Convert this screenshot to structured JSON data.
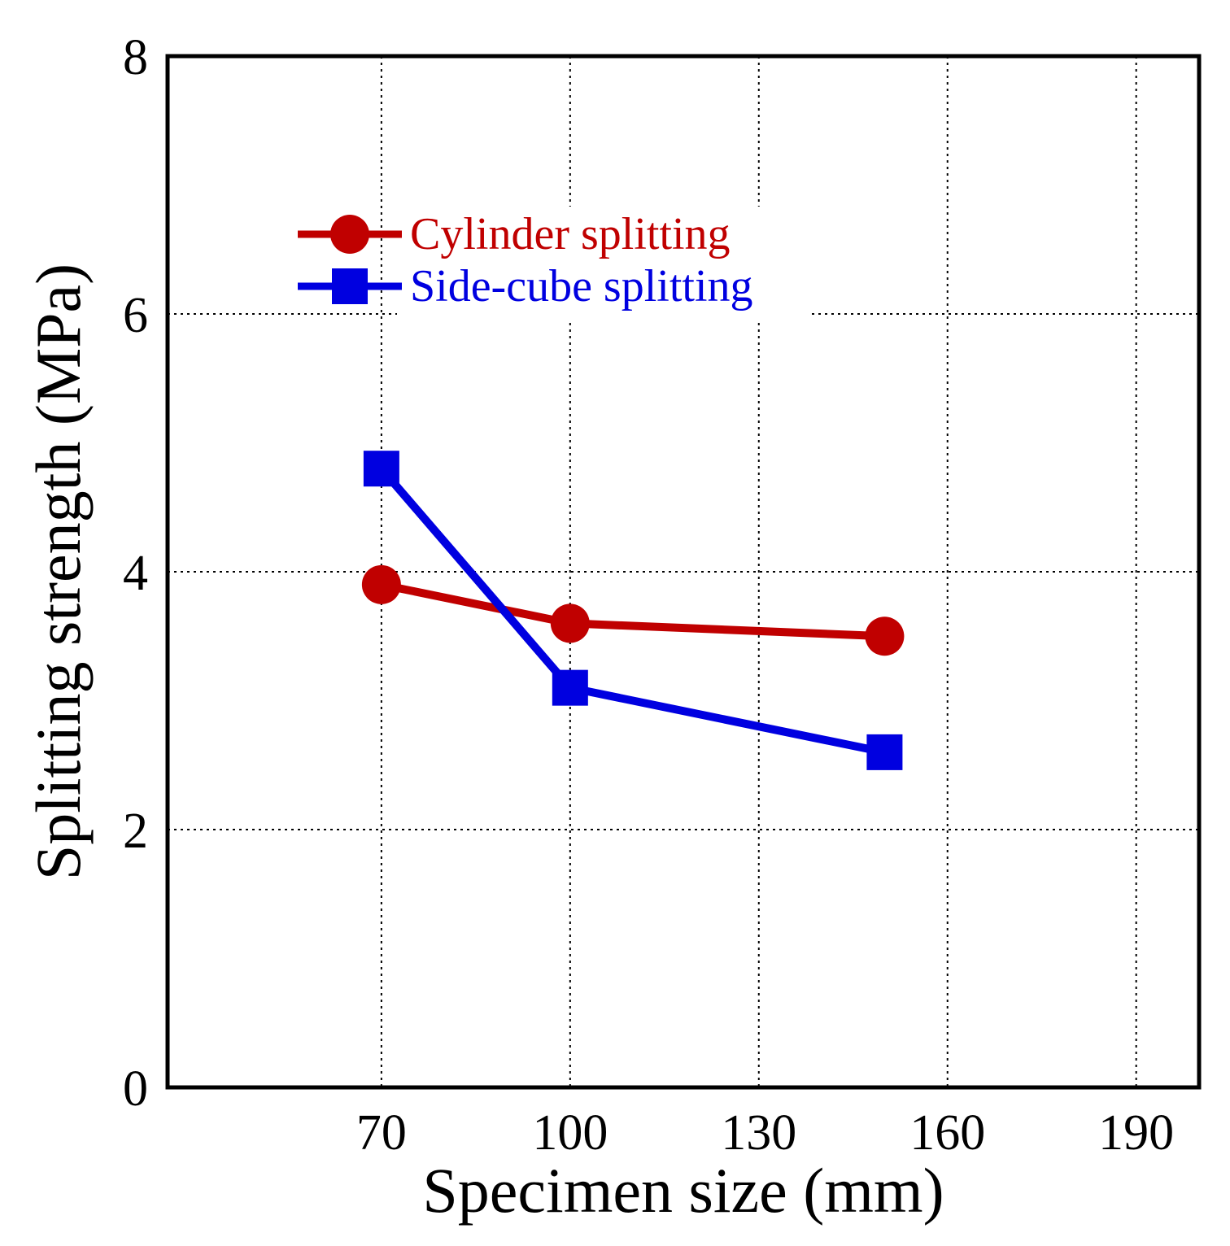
{
  "chart_data": {
    "type": "line",
    "xlabel": "Specimen size (mm)",
    "ylabel": "Splitting strength (MPa)",
    "xlim": [
      36,
      200
    ],
    "ylim": [
      0,
      8
    ],
    "xticks": [
      70,
      100,
      130,
      160,
      190
    ],
    "yticks": [
      0,
      2,
      4,
      6,
      8
    ],
    "grid": true,
    "legend_position": "upper-left",
    "series": [
      {
        "name": "Cylinder splitting",
        "color": "#c00000",
        "marker": "circle",
        "x": [
          70,
          100,
          150
        ],
        "y": [
          3.9,
          3.6,
          3.5
        ]
      },
      {
        "name": "Side-cube splitting",
        "color": "#0000e0",
        "marker": "square",
        "x": [
          70,
          100,
          150
        ],
        "y": [
          4.8,
          3.1,
          2.6
        ]
      }
    ]
  }
}
